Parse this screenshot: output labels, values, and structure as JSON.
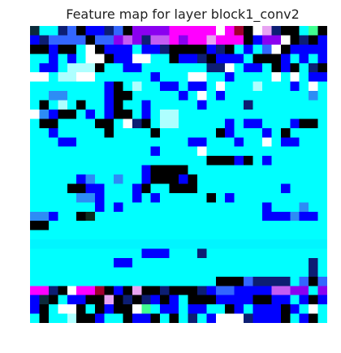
{
  "chart_data": {
    "type": "heatmap",
    "title": "Feature map for layer block1_conv2",
    "xlabel": "",
    "ylabel": "",
    "axes": "off",
    "grid": false,
    "colorbar": false,
    "n_rows": 32,
    "n_cols": 32,
    "legend": {
      "c": "#00FFFF",
      "C": "#00F5FF",
      "k": "#000000",
      "w": "#FFFFFF",
      "b": "#0000FF",
      "u": "#3366FF",
      "s": "#2D8CF5",
      "n": "#0D1E73",
      "d": "#0B2A3A",
      "m": "#FF00FF",
      "p": "#8A00F0",
      "v": "#C35DF2",
      "l": "#E8A4F2",
      "r": "#A0002E",
      "y": "#AEFFFF",
      "g": "#40FF90",
      "e": "#0C2C1C"
    },
    "rows": [
      "dccnukbbnukppppmmmmmwmrkwlnkkcgk",
      "bnuuuukuupvpnvvmpmmlmmmkbppwknkb",
      "kkbkkcwkbbbcbbnkkkkbnkcbcuwkbbbb",
      "ccbcbcwwkbbwwcckbbnkbbbckkkbcbcb",
      "cbbcyyykccbbcccccccnnwcbbckbkcnk",
      "wwcyywwccccccbcccwwccbccccwcwcbb",
      "ccccccccbkcyccbbcbbcwcccycccbcwc",
      "ccssccccbkkcccccbcwcbcccccccccsc",
      "ckcyckccbkccbcccccbccccncccccccc",
      "wsbkkcbcbkkcbcyycccccccccccccccc",
      "ckkcccckkcwnkcyycccccbcbbcccbkkc",
      "ccbccccckcccckcccccckbcccbckcccc",
      "cccbbccccccccccccbbcccbccwcbbccc",
      "cccccccccccccbccccwccccccccccccc",
      "ccccccccccccccccccckkkbkcbcccccc",
      "ccccccccccccbkkkkccccccccccccccc",
      "cccccbsccsccbkkkbkcccccccccccccc",
      "cccckkbbcccbkcckkkcccccccccbcccc",
      "cccccssbcccbcbccccckcbcccccccccc",
      "cccccccbcbcccccccccccccccbcccscc",
      "ssbcckeccccccccccccccccccbbbsbbc",
      "kkcccccccccccccccccccccccccccccc",
      "cccccccccccccccccccccccccccccccc",
      "CCCCCCCCCCCCCCCCCCCCCCCCCCCCCCCC",
      "ccccccccccccbbbcccnccccccccccccc",
      "cccccccccbbcccccccccccccccccccnc",
      "ccccccccccccccccccccccccccccccnc",
      "cccccccccccccccccccckkkunnnncuku",
      "mmnkwmmrkbklkknkkknbuubbbbvvppcp",
      "bdkcbbkklknknbkbckkkbbbbkkbbcbkb",
      "bkcwwkckbkkwgcbbcbbcckbcbbbkbcwc",
      "ckccykkbcckbbkckcncbwwwnbbbkcbkc"
    ]
  }
}
